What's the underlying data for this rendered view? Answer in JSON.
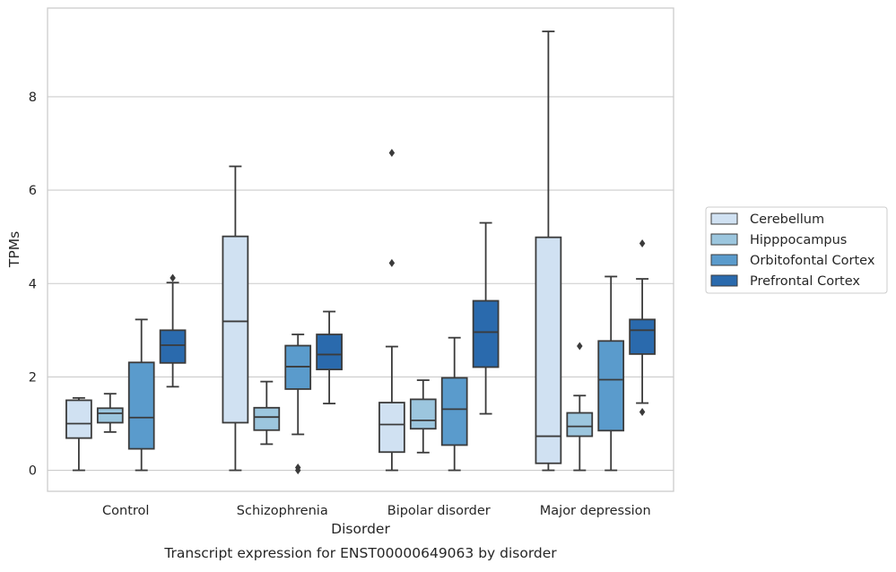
{
  "chart_data": {
    "type": "box",
    "caption": "Transcript expression for ENST00000649063 by disorder",
    "xlabel": "Disorder",
    "ylabel": "TPMs",
    "ylim": [
      -0.45,
      9.9
    ],
    "yticks": [
      0,
      2,
      4,
      6,
      8
    ],
    "grid": true,
    "legend_position": "right",
    "categories": [
      "Control",
      "Schizophrenia",
      "Bipolar disorder",
      "Major depression"
    ],
    "series": [
      {
        "name": "Cerebellum",
        "color": "#d0e1f2",
        "boxes": [
          {
            "whislo": 0.0,
            "q1": 0.69,
            "med": 1.0,
            "q3": 1.5,
            "whishi": 1.55,
            "fliers": []
          },
          {
            "whislo": 0.0,
            "q1": 1.02,
            "med": 3.19,
            "q3": 5.01,
            "whishi": 6.51,
            "fliers": []
          },
          {
            "whislo": 0.0,
            "q1": 0.39,
            "med": 0.98,
            "q3": 1.45,
            "whishi": 2.65,
            "fliers": [
              4.44,
              6.8
            ]
          },
          {
            "whislo": 0.0,
            "q1": 0.15,
            "med": 0.73,
            "q3": 4.99,
            "whishi": 9.4,
            "fliers": []
          }
        ]
      },
      {
        "name": "Hipppocampus",
        "color": "#9cc6de",
        "boxes": [
          {
            "whislo": 0.82,
            "q1": 1.02,
            "med": 1.22,
            "q3": 1.33,
            "whishi": 1.64,
            "fliers": []
          },
          {
            "whislo": 0.56,
            "q1": 0.86,
            "med": 1.14,
            "q3": 1.34,
            "whishi": 1.9,
            "fliers": []
          },
          {
            "whislo": 0.38,
            "q1": 0.89,
            "med": 1.07,
            "q3": 1.52,
            "whishi": 1.93,
            "fliers": []
          },
          {
            "whislo": 0.0,
            "q1": 0.73,
            "med": 0.94,
            "q3": 1.23,
            "whishi": 1.6,
            "fliers": [
              2.66
            ]
          }
        ]
      },
      {
        "name": "Orbitofontal Cortex",
        "color": "#5a9bcc",
        "boxes": [
          {
            "whislo": 0.0,
            "q1": 0.46,
            "med": 1.13,
            "q3": 2.31,
            "whishi": 3.23,
            "fliers": []
          },
          {
            "whislo": 0.77,
            "q1": 1.74,
            "med": 2.22,
            "q3": 2.67,
            "whishi": 2.91,
            "fliers": [
              0.0,
              0.06
            ]
          },
          {
            "whislo": 0.0,
            "q1": 0.54,
            "med": 1.31,
            "q3": 1.98,
            "whishi": 2.84,
            "fliers": []
          },
          {
            "whislo": 0.0,
            "q1": 0.85,
            "med": 1.94,
            "q3": 2.77,
            "whishi": 4.15,
            "fliers": []
          }
        ]
      },
      {
        "name": "Prefrontal Cortex",
        "color": "#2a6aad",
        "boxes": [
          {
            "whislo": 1.79,
            "q1": 2.3,
            "med": 2.68,
            "q3": 3.0,
            "whishi": 4.02,
            "fliers": [
              4.12
            ]
          },
          {
            "whislo": 1.43,
            "q1": 2.16,
            "med": 2.48,
            "q3": 2.91,
            "whishi": 3.4,
            "fliers": []
          },
          {
            "whislo": 1.21,
            "q1": 2.21,
            "med": 2.96,
            "q3": 3.63,
            "whishi": 5.3,
            "fliers": []
          },
          {
            "whislo": 1.44,
            "q1": 2.49,
            "med": 3.0,
            "q3": 3.23,
            "whishi": 4.1,
            "fliers": [
              1.25,
              4.86
            ]
          }
        ]
      }
    ],
    "colors": {
      "grid": "#cccccc",
      "frame": "#cccccc",
      "box_edge": "#3b3b3b",
      "text": "#262626"
    }
  }
}
